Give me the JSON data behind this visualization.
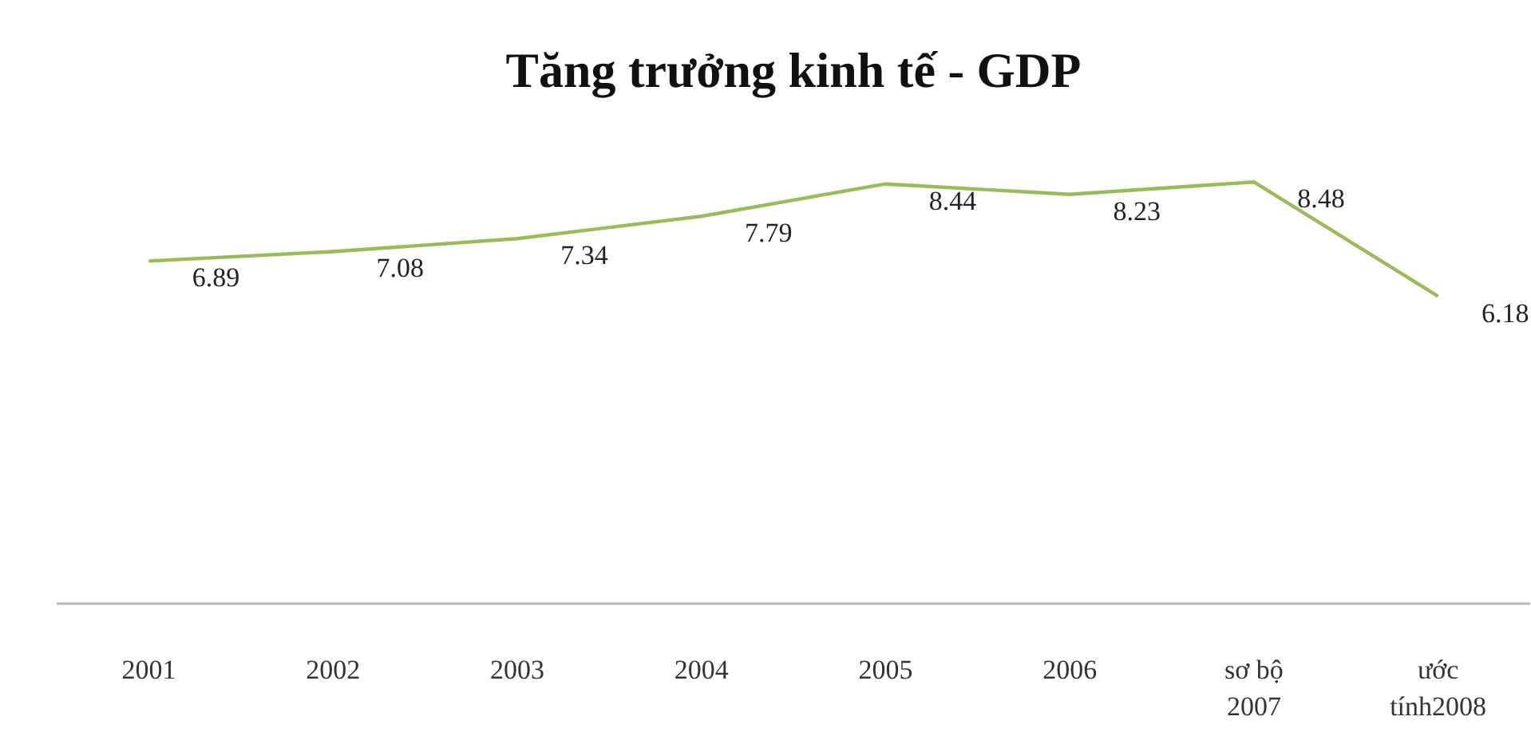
{
  "chart_data": {
    "type": "line",
    "title": "Tăng trưởng kinh tế - GDP",
    "categories": [
      "2001",
      "2002",
      "2003",
      "2004",
      "2005",
      "2006",
      "sơ bộ 2007",
      "ước tính2008"
    ],
    "series": [
      {
        "color": "#9bbb59",
        "values": [
          6.89,
          7.08,
          7.34,
          7.79,
          8.44,
          8.23,
          8.48,
          6.18
        ]
      }
    ],
    "tick_labels": "x",
    "data_labels": true,
    "grid": false,
    "marker": "none",
    "line_style": "solid"
  }
}
